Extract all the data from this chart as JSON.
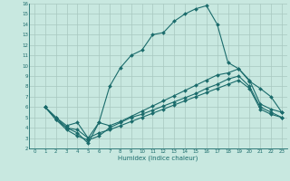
{
  "xlabel": "Humidex (Indice chaleur)",
  "xlim": [
    -0.5,
    23.5
  ],
  "ylim": [
    2,
    16
  ],
  "xticks": [
    0,
    1,
    2,
    3,
    4,
    5,
    6,
    7,
    8,
    9,
    10,
    11,
    12,
    13,
    14,
    15,
    16,
    17,
    18,
    19,
    20,
    21,
    22,
    23
  ],
  "yticks": [
    2,
    3,
    4,
    5,
    6,
    7,
    8,
    9,
    10,
    11,
    12,
    13,
    14,
    15,
    16
  ],
  "bg_color": "#c8e8e0",
  "line_color": "#1a6b6b",
  "grid_color": "#a8c8c0",
  "line1_x": [
    1,
    2,
    3,
    4,
    5,
    6,
    7,
    8,
    9,
    10,
    11,
    12,
    13,
    14,
    15,
    16,
    17,
    18,
    19,
    20,
    21,
    22,
    23
  ],
  "line1_y": [
    6.0,
    5.0,
    4.0,
    3.5,
    2.5,
    4.5,
    8.0,
    9.8,
    11.0,
    11.5,
    13.0,
    13.2,
    14.3,
    15.0,
    15.5,
    15.8,
    14.0,
    10.3,
    9.7,
    8.5,
    7.8,
    7.0,
    5.5
  ],
  "line2_x": [
    1,
    2,
    3,
    4,
    5,
    6,
    7,
    8,
    9,
    10,
    11,
    12,
    13,
    14,
    15,
    16,
    17,
    18,
    19,
    20,
    21,
    22,
    23
  ],
  "line2_y": [
    6.0,
    5.0,
    4.2,
    4.5,
    3.0,
    4.5,
    4.2,
    4.6,
    5.1,
    5.6,
    6.1,
    6.6,
    7.1,
    7.6,
    8.1,
    8.6,
    9.1,
    9.3,
    9.7,
    8.6,
    6.3,
    5.8,
    5.5
  ],
  "line3_x": [
    1,
    2,
    3,
    4,
    5,
    6,
    7,
    8,
    9,
    10,
    11,
    12,
    13,
    14,
    15,
    16,
    17,
    18,
    19,
    20,
    21,
    22,
    23
  ],
  "line3_y": [
    6.0,
    4.8,
    3.8,
    3.2,
    2.8,
    3.2,
    4.0,
    4.5,
    5.0,
    5.3,
    5.7,
    6.1,
    6.5,
    6.9,
    7.3,
    7.8,
    8.2,
    8.7,
    9.0,
    8.0,
    6.0,
    5.5,
    5.0
  ],
  "line4_x": [
    1,
    2,
    3,
    4,
    5,
    6,
    7,
    8,
    9,
    10,
    11,
    12,
    13,
    14,
    15,
    16,
    17,
    18,
    19,
    20,
    21,
    22,
    23
  ],
  "line4_y": [
    6.0,
    4.8,
    4.0,
    3.8,
    3.0,
    3.5,
    3.8,
    4.2,
    4.6,
    5.0,
    5.4,
    5.8,
    6.2,
    6.6,
    7.0,
    7.4,
    7.8,
    8.2,
    8.6,
    7.8,
    5.8,
    5.3,
    5.0
  ]
}
